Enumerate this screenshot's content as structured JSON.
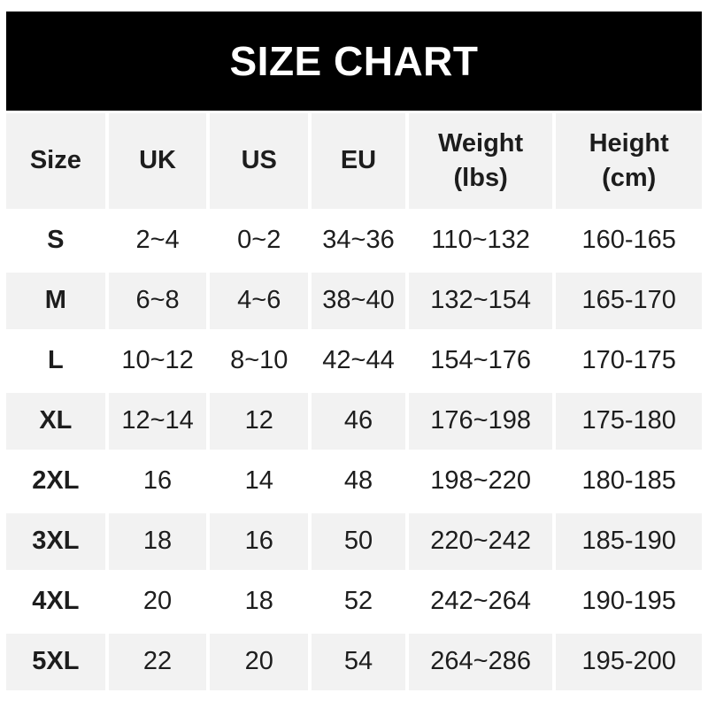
{
  "banner": {
    "title": "SIZE CHART"
  },
  "colors": {
    "banner_bg": "#000000",
    "banner_text": "#ffffff",
    "row_stripe": "#f2f2f2",
    "row_plain": "#ffffff",
    "text": "#1d1d1d"
  },
  "header": {
    "cells": [
      {
        "label": "Size",
        "sub": ""
      },
      {
        "label": "UK",
        "sub": ""
      },
      {
        "label": "US",
        "sub": ""
      },
      {
        "label": "EU",
        "sub": ""
      },
      {
        "label": "Weight",
        "sub": "(lbs)"
      },
      {
        "label": "Height",
        "sub": "(cm)"
      }
    ]
  },
  "chart_data": {
    "type": "table",
    "title": "SIZE CHART",
    "columns": [
      "Size",
      "UK",
      "US",
      "EU",
      "Weight (lbs)",
      "Height (cm)"
    ],
    "rows": [
      [
        "S",
        "2~4",
        "0~2",
        "34~36",
        "110~132",
        "160-165"
      ],
      [
        "M",
        "6~8",
        "4~6",
        "38~40",
        "132~154",
        "165-170"
      ],
      [
        "L",
        "10~12",
        "8~10",
        "42~44",
        "154~176",
        "170-175"
      ],
      [
        "XL",
        "12~14",
        "12",
        "46",
        "176~198",
        "175-180"
      ],
      [
        "2XL",
        "16",
        "14",
        "48",
        "198~220",
        "180-185"
      ],
      [
        "3XL",
        "18",
        "16",
        "50",
        "220~242",
        "185-190"
      ],
      [
        "4XL",
        "20",
        "18",
        "52",
        "242~264",
        "190-195"
      ],
      [
        "5XL",
        "22",
        "20",
        "54",
        "264~286",
        "195-200"
      ]
    ],
    "layout": {
      "striped_rows": [
        "M",
        "XL",
        "3XL",
        "5XL"
      ],
      "header_bg": "stripe"
    }
  }
}
